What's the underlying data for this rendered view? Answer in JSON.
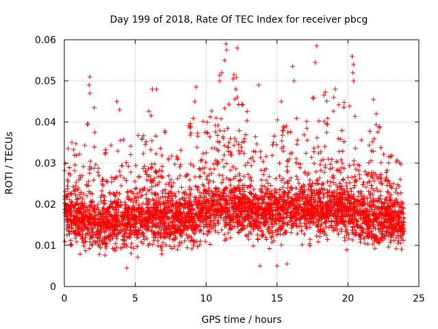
{
  "chart_data": {
    "type": "scatter",
    "title": "Day 199 of 2018, Rate Of TEC Index for receiver pbcg",
    "xlabel": "GPS time / hours",
    "ylabel": "ROTI / TECUs",
    "xlim": [
      0,
      25
    ],
    "ylim": [
      0,
      0.06
    ],
    "xticks": [
      0,
      5,
      10,
      15,
      20,
      25
    ],
    "yticks": [
      0,
      0.01,
      0.02,
      0.03,
      0.04,
      0.05,
      0.06
    ],
    "xtick_labels": [
      "0",
      "5",
      "10",
      "15",
      "20",
      "25"
    ],
    "ytick_labels": [
      "0",
      "0.01",
      "0.02",
      "0.03",
      "0.04",
      "0.05",
      "0.06"
    ],
    "grid": true,
    "marker": "plus",
    "marker_color": "#ff0000",
    "series": [
      {
        "name": "ROTI",
        "profile_hours": [
          0,
          1,
          2,
          3,
          4,
          5,
          6,
          7,
          8,
          9,
          10,
          11,
          12,
          13,
          14,
          15,
          16,
          17,
          18,
          19,
          20,
          21,
          22,
          23,
          24
        ],
        "profile_median": [
          0.017,
          0.016,
          0.015,
          0.015,
          0.016,
          0.016,
          0.016,
          0.016,
          0.016,
          0.017,
          0.018,
          0.019,
          0.019,
          0.018,
          0.018,
          0.018,
          0.019,
          0.018,
          0.018,
          0.019,
          0.018,
          0.017,
          0.016,
          0.016,
          0.016
        ],
        "profile_peak": [
          0.036,
          0.042,
          0.051,
          0.037,
          0.045,
          0.041,
          0.048,
          0.043,
          0.034,
          0.048,
          0.047,
          0.059,
          0.058,
          0.049,
          0.035,
          0.045,
          0.054,
          0.043,
          0.058,
          0.048,
          0.056,
          0.038,
          0.046,
          0.036,
          0.033
        ],
        "highlight_points": [
          {
            "x": 1.8,
            "y": 0.051
          },
          {
            "x": 1.75,
            "y": 0.049
          },
          {
            "x": 1.8,
            "y": 0.047
          },
          {
            "x": 3.7,
            "y": 0.045
          },
          {
            "x": 3.9,
            "y": 0.043
          },
          {
            "x": 6.2,
            "y": 0.048
          },
          {
            "x": 6.5,
            "y": 0.048
          },
          {
            "x": 9.3,
            "y": 0.0485
          },
          {
            "x": 9.2,
            "y": 0.045
          },
          {
            "x": 10.95,
            "y": 0.05
          },
          {
            "x": 11.1,
            "y": 0.052
          },
          {
            "x": 11.4,
            "y": 0.059
          },
          {
            "x": 11.45,
            "y": 0.0575
          },
          {
            "x": 11.3,
            "y": 0.055
          },
          {
            "x": 12.2,
            "y": 0.058
          },
          {
            "x": 11.9,
            "y": 0.0505
          },
          {
            "x": 12.1,
            "y": 0.048
          },
          {
            "x": 13.7,
            "y": 0.049
          },
          {
            "x": 15.3,
            "y": 0.045
          },
          {
            "x": 16.1,
            "y": 0.0535
          },
          {
            "x": 16.2,
            "y": 0.05
          },
          {
            "x": 17.8,
            "y": 0.0585
          },
          {
            "x": 17.7,
            "y": 0.0545
          },
          {
            "x": 19.1,
            "y": 0.048
          },
          {
            "x": 19.0,
            "y": 0.046
          },
          {
            "x": 20.3,
            "y": 0.056
          },
          {
            "x": 20.4,
            "y": 0.054
          },
          {
            "x": 20.35,
            "y": 0.052
          },
          {
            "x": 20.4,
            "y": 0.05
          },
          {
            "x": 21.8,
            "y": 0.0455
          },
          {
            "x": 22.0,
            "y": 0.042
          },
          {
            "x": 4.4,
            "y": 0.0045
          },
          {
            "x": 13.8,
            "y": 0.005
          },
          {
            "x": 15.0,
            "y": 0.005
          },
          {
            "x": 15.7,
            "y": 0.0055
          }
        ]
      }
    ]
  }
}
